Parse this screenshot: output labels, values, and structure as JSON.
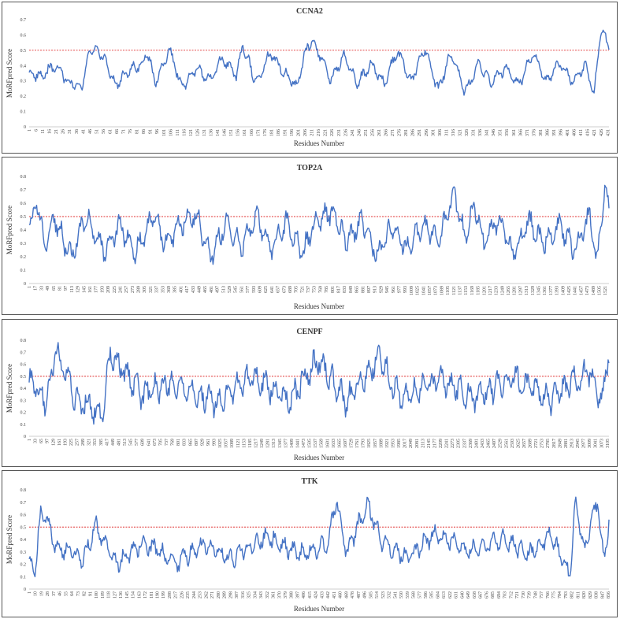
{
  "chart_data": [
    {
      "type": "line",
      "title": "CCNA2",
      "xlabel": "Residues Number",
      "ylabel": "MoRFpred Score",
      "ylim": [
        0,
        0.7
      ],
      "yticks": [
        "0",
        "0.1",
        "0.2",
        "0.3",
        "0.4",
        "0.5",
        "0.6",
        "0.7"
      ],
      "threshold": 0.5,
      "length": 432,
      "xtick_step": 5,
      "x": [
        1,
        10,
        20,
        30,
        40,
        46,
        55,
        65,
        75,
        85,
        88,
        95,
        105,
        115,
        125,
        135,
        145,
        155,
        160,
        170,
        180,
        190,
        200,
        208,
        215,
        225,
        235,
        245,
        255,
        265,
        275,
        285,
        295,
        305,
        315,
        325,
        335,
        345,
        355,
        365,
        375,
        385,
        395,
        405,
        415,
        421,
        426,
        432
      ],
      "values": [
        0.35,
        0.33,
        0.4,
        0.3,
        0.25,
        0.51,
        0.48,
        0.27,
        0.37,
        0.41,
        0.5,
        0.28,
        0.51,
        0.25,
        0.38,
        0.3,
        0.45,
        0.33,
        0.53,
        0.28,
        0.48,
        0.36,
        0.26,
        0.54,
        0.52,
        0.3,
        0.47,
        0.28,
        0.41,
        0.28,
        0.5,
        0.3,
        0.52,
        0.24,
        0.49,
        0.22,
        0.42,
        0.29,
        0.39,
        0.27,
        0.48,
        0.3,
        0.42,
        0.3,
        0.4,
        0.2,
        0.65,
        0.52
      ]
    },
    {
      "type": "line",
      "title": "TOP2A",
      "xlabel": "Residues Number",
      "ylabel": "MoRFpred Score",
      "ylim": [
        0,
        0.8
      ],
      "yticks": [
        "0",
        "0.1",
        "0.2",
        "0.3",
        "0.4",
        "0.5",
        "0.6",
        "0.7",
        "0.8"
      ],
      "threshold": 0.5,
      "length": 1531,
      "xtick_step": 16,
      "x": [
        1,
        20,
        40,
        70,
        110,
        150,
        200,
        240,
        280,
        330,
        360,
        400,
        440,
        480,
        520,
        560,
        600,
        640,
        680,
        720,
        760,
        800,
        840,
        880,
        920,
        960,
        1000,
        1040,
        1080,
        1121,
        1150,
        1176,
        1200,
        1240,
        1280,
        1320,
        1360,
        1400,
        1440,
        1480,
        1500,
        1520,
        1531
      ],
      "values": [
        0.4,
        0.61,
        0.3,
        0.48,
        0.2,
        0.5,
        0.25,
        0.45,
        0.22,
        0.52,
        0.3,
        0.42,
        0.52,
        0.2,
        0.45,
        0.28,
        0.5,
        0.25,
        0.46,
        0.22,
        0.47,
        0.54,
        0.3,
        0.48,
        0.2,
        0.44,
        0.25,
        0.45,
        0.3,
        0.68,
        0.35,
        0.59,
        0.3,
        0.48,
        0.22,
        0.46,
        0.3,
        0.44,
        0.25,
        0.5,
        0.15,
        0.74,
        0.52
      ]
    },
    {
      "type": "line",
      "title": "CENPF",
      "xlabel": "Residues Number",
      "ylabel": "MoRFpred Score",
      "ylim": [
        0,
        0.8
      ],
      "yticks": [
        "0",
        "0.1",
        "0.2",
        "0.3",
        "0.4",
        "0.5",
        "0.6",
        "0.7",
        "0.8"
      ],
      "threshold": 0.5,
      "length": 3114,
      "xtick_step": 32,
      "x": [
        1,
        100,
        140,
        250,
        400,
        435,
        600,
        800,
        1000,
        1200,
        1400,
        1556,
        1700,
        1880,
        2000,
        2200,
        2400,
        2600,
        2800,
        3000,
        3080,
        3114
      ],
      "values": [
        0.45,
        0.28,
        0.74,
        0.3,
        0.2,
        0.7,
        0.35,
        0.45,
        0.28,
        0.5,
        0.3,
        0.65,
        0.28,
        0.66,
        0.3,
        0.48,
        0.32,
        0.5,
        0.3,
        0.55,
        0.3,
        0.72
      ]
    },
    {
      "type": "line",
      "title": "TTK",
      "xlabel": "Residues Number",
      "ylabel": "MoRFpred Score",
      "ylim": [
        0,
        0.8
      ],
      "yticks": [
        "0",
        "0.1",
        "0.2",
        "0.3",
        "0.4",
        "0.5",
        "0.6",
        "0.7",
        "0.8"
      ],
      "threshold": 0.5,
      "length": 857,
      "xtick_step": 9,
      "x": [
        1,
        10,
        19,
        40,
        80,
        100,
        130,
        170,
        220,
        260,
        300,
        350,
        400,
        440,
        455,
        470,
        500,
        520,
        560,
        600,
        650,
        700,
        740,
        770,
        800,
        808,
        820,
        840,
        850,
        857
      ],
      "values": [
        0.2,
        0.18,
        0.65,
        0.35,
        0.25,
        0.5,
        0.2,
        0.38,
        0.22,
        0.36,
        0.25,
        0.42,
        0.28,
        0.35,
        0.72,
        0.3,
        0.68,
        0.4,
        0.25,
        0.45,
        0.3,
        0.4,
        0.28,
        0.44,
        0.12,
        0.73,
        0.3,
        0.72,
        0.2,
        0.58
      ]
    }
  ]
}
